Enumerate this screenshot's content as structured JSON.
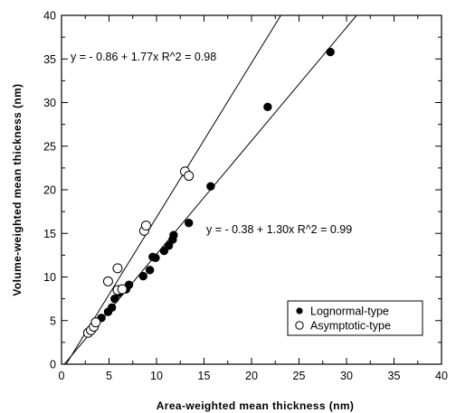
{
  "chart_data": {
    "type": "scatter",
    "xlabel": "Area-weighted  mean  thickness  (nm)",
    "ylabel": "Volume-weighted  mean  thickness  (nm)",
    "xlim": [
      0,
      40
    ],
    "ylim": [
      0,
      40
    ],
    "xticks": [
      0,
      5,
      10,
      15,
      20,
      25,
      30,
      35,
      40
    ],
    "yticks": [
      0,
      5,
      10,
      15,
      20,
      25,
      30,
      35,
      40
    ],
    "grid": false,
    "legend_position": "bottom-right",
    "series": [
      {
        "name": "Lognormal-type",
        "marker": "filled-circle",
        "color": "#000000",
        "points": [
          [
            4.2,
            5.3
          ],
          [
            4.9,
            6.0
          ],
          [
            5.3,
            6.5
          ],
          [
            5.6,
            7.5
          ],
          [
            6.1,
            8.2
          ],
          [
            6.8,
            8.6
          ],
          [
            7.1,
            9.1
          ],
          [
            8.6,
            10.1
          ],
          [
            9.3,
            10.8
          ],
          [
            9.6,
            12.3
          ],
          [
            9.9,
            12.2
          ],
          [
            10.8,
            13.0
          ],
          [
            11.3,
            13.6
          ],
          [
            11.7,
            14.3
          ],
          [
            11.8,
            14.8
          ],
          [
            13.4,
            16.2
          ],
          [
            15.7,
            20.4
          ],
          [
            21.7,
            29.5
          ],
          [
            28.3,
            35.8
          ]
        ]
      },
      {
        "name": "Asymptotic-type",
        "marker": "open-circle",
        "color": "#000000",
        "points": [
          [
            2.8,
            3.6
          ],
          [
            3.1,
            3.9
          ],
          [
            3.4,
            4.3
          ],
          [
            3.6,
            4.8
          ],
          [
            4.9,
            9.5
          ],
          [
            5.9,
            8.5
          ],
          [
            6.4,
            8.6
          ],
          [
            5.9,
            11.0
          ],
          [
            8.7,
            15.3
          ],
          [
            8.9,
            15.9
          ],
          [
            13.0,
            22.1
          ],
          [
            13.4,
            21.6
          ]
        ]
      }
    ],
    "fits": [
      {
        "label": "y =  - 0.86 + 1.77x    R^2 = 0.98",
        "intercept": -0.86,
        "slope": 1.77,
        "series": "Asymptotic-type"
      },
      {
        "label": "y =  - 0.38 + 1.30x    R^2 = 0.99",
        "intercept": -0.38,
        "slope": 1.3,
        "series": "Lognormal-type"
      }
    ]
  }
}
